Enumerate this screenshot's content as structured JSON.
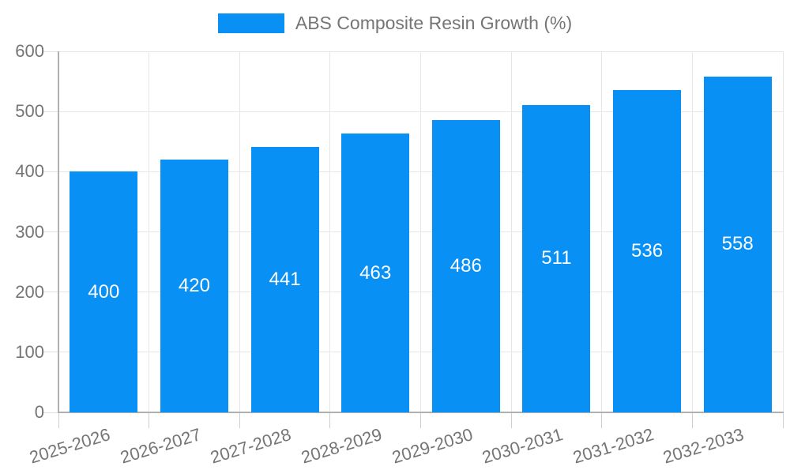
{
  "chart_data": {
    "type": "bar",
    "title": "ABS Composite Resin Growth (%)",
    "legend": {
      "label": "ABS Composite Resin Growth (%)",
      "position": "top-center"
    },
    "categories": [
      "2025-2026",
      "2026-2027",
      "2027-2028",
      "2028-2029",
      "2029-2030",
      "2030-2031",
      "2031-2032",
      "2032-2033"
    ],
    "series": [
      {
        "name": "ABS Composite Resin Growth (%)",
        "color": "#0890f5",
        "values": [
          400,
          420,
          441,
          463,
          486,
          511,
          536,
          558
        ]
      }
    ],
    "data_labels": {
      "show": true,
      "position": "inside-center",
      "color": "#ffffff"
    },
    "xlabel": "",
    "ylabel": "",
    "y_axis": {
      "min": 0,
      "max": 600,
      "tick_interval": 100,
      "tick_labels": [
        "0",
        "100",
        "200",
        "300",
        "400",
        "500",
        "600"
      ]
    },
    "x_axis": {
      "label_rotation_deg": -17
    },
    "grid": {
      "horizontal": true,
      "vertical": true
    }
  },
  "colors": {
    "bar": "#0890f5",
    "axis_text": "#757575",
    "legend_text": "#757575",
    "grid_line": "#e6e6e6",
    "axis_line": "#b0b0b0",
    "tick_line": "#cfcfcf",
    "value_label": "#ffffff",
    "background": "#ffffff"
  }
}
